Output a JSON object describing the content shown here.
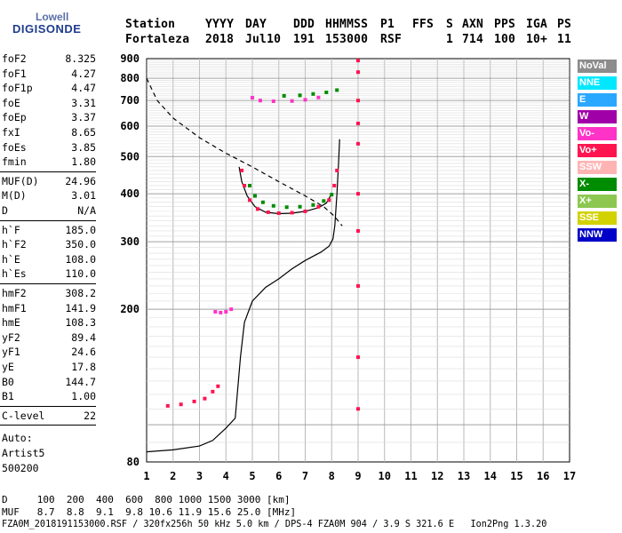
{
  "logo": {
    "line1": "Lowell",
    "line2": "DIGISONDE"
  },
  "header": {
    "labels": [
      "Station",
      "YYYY",
      "DAY",
      "DDD",
      "HHMMSS",
      "P1",
      "FFS",
      "S",
      "AXN",
      "PPS",
      "IGA",
      "PS"
    ],
    "values": [
      "Fortaleza",
      "2018",
      "Jul10",
      "191",
      "153000",
      "RSF",
      "",
      "1",
      "714",
      "100",
      "10+",
      "11"
    ]
  },
  "parameters": {
    "group1": [
      {
        "k": "foF2",
        "v": "8.325"
      },
      {
        "k": "foF1",
        "v": "4.27"
      },
      {
        "k": "foF1p",
        "v": "4.47"
      },
      {
        "k": "foE",
        "v": "3.31"
      },
      {
        "k": "foEp",
        "v": "3.37"
      },
      {
        "k": "fxI",
        "v": "8.65"
      },
      {
        "k": "foEs",
        "v": "3.85"
      },
      {
        "k": "fmin",
        "v": "1.80"
      }
    ],
    "group2": [
      {
        "k": "MUF(D)",
        "v": "24.96"
      },
      {
        "k": "M(D)",
        "v": "3.01"
      },
      {
        "k": "D",
        "v": "N/A"
      }
    ],
    "group3": [
      {
        "k": "h`F",
        "v": "185.0"
      },
      {
        "k": "h`F2",
        "v": "350.0"
      },
      {
        "k": "h`E",
        "v": "108.0"
      },
      {
        "k": "h`Es",
        "v": "110.0"
      }
    ],
    "group4": [
      {
        "k": "hmF2",
        "v": "308.2"
      },
      {
        "k": "hmF1",
        "v": "141.9"
      },
      {
        "k": "hmE",
        "v": "108.3"
      },
      {
        "k": "yF2",
        "v": "89.4"
      },
      {
        "k": "yF1",
        "v": "24.6"
      },
      {
        "k": "yE",
        "v": "17.8"
      },
      {
        "k": "B0",
        "v": "144.7"
      },
      {
        "k": "B1",
        "v": "1.00"
      }
    ],
    "group5": [
      {
        "k": "C-level",
        "v": "22"
      }
    ],
    "autoscaling": [
      "Auto:",
      "Artist5",
      "500200"
    ]
  },
  "legend": [
    {
      "label": "NoVal",
      "color": "#8c8c8c",
      "text": "#ffffff"
    },
    {
      "label": "NNE",
      "color": "#00e8ff",
      "text": "#ffffff"
    },
    {
      "label": "E",
      "color": "#2aa7ff",
      "text": "#ffffff"
    },
    {
      "label": "W",
      "color": "#a000a8",
      "text": "#ffffff"
    },
    {
      "label": "Vo-",
      "color": "#ff33c8",
      "text": "#ffffff"
    },
    {
      "label": "Vo+",
      "color": "#ff1450",
      "text": "#ffffff"
    },
    {
      "label": "SSW",
      "color": "#ffb4b4",
      "text": "#ffffff"
    },
    {
      "label": "X-",
      "color": "#008c00",
      "text": "#ffffff"
    },
    {
      "label": "X+",
      "color": "#8cc850",
      "text": "#ffffff"
    },
    {
      "label": "SSE",
      "color": "#d2d200",
      "text": "#ffffff"
    },
    {
      "label": "NNW",
      "color": "#0000c8",
      "text": "#ffffff"
    }
  ],
  "footer": {
    "line1": "D     100  200  400  600  800 1000 1500 3000 [km]",
    "line2": "MUF   8.7  8.8  9.1  9.8 10.6 11.9 15.6 25.0 [MHz]",
    "line3": "FZA0M_2018191153000.RSF / 320fx256h 50 kHz 5.0 km / DPS-4 FZA0M 904 / 3.9 S 321.6 E   Ion2Png 1.3.20"
  },
  "chart_data": {
    "type": "scatter",
    "title": "",
    "xlabel": "",
    "ylabel": "",
    "xlim": [
      1,
      17
    ],
    "ylim": [
      80,
      900
    ],
    "x_ticks": [
      1,
      2,
      3,
      4,
      5,
      6,
      7,
      8,
      9,
      10,
      11,
      12,
      13,
      14,
      15,
      16,
      17
    ],
    "y_ticks": [
      80,
      100,
      200,
      300,
      400,
      500,
      600,
      700,
      800,
      900
    ],
    "y_tick_labels": [
      "80",
      "",
      "200",
      "300",
      "400",
      "500",
      "600",
      "700",
      "800",
      "900"
    ],
    "y_scale": "log",
    "grid": true,
    "series": [
      {
        "kind": "line",
        "style": "dashed",
        "color": "#000000",
        "points": [
          [
            1.0,
            800
          ],
          [
            1.4,
            700
          ],
          [
            2.0,
            630
          ],
          [
            3.0,
            560
          ],
          [
            4.0,
            510
          ],
          [
            5.0,
            470
          ],
          [
            6.0,
            430
          ],
          [
            7.0,
            395
          ],
          [
            7.7,
            370
          ],
          [
            8.1,
            350
          ],
          [
            8.4,
            330
          ]
        ]
      },
      {
        "kind": "line",
        "style": "solid",
        "color": "#000000",
        "points": [
          [
            1.0,
            85
          ],
          [
            2.0,
            86
          ],
          [
            3.0,
            88
          ],
          [
            3.5,
            91
          ],
          [
            4.0,
            98
          ],
          [
            4.35,
            104
          ],
          [
            4.55,
            150
          ],
          [
            4.7,
            185
          ],
          [
            5.0,
            210
          ],
          [
            5.5,
            228
          ],
          [
            6.0,
            240
          ],
          [
            6.5,
            255
          ],
          [
            7.0,
            268
          ],
          [
            7.6,
            282
          ],
          [
            7.9,
            292
          ],
          [
            8.05,
            305
          ],
          [
            8.12,
            330
          ],
          [
            8.2,
            400
          ],
          [
            8.26,
            480
          ],
          [
            8.3,
            555
          ]
        ]
      },
      {
        "kind": "line",
        "style": "solid",
        "color": "#000000",
        "points": [
          [
            4.5,
            470
          ],
          [
            4.6,
            430
          ],
          [
            4.8,
            395
          ],
          [
            5.1,
            370
          ],
          [
            5.5,
            358
          ],
          [
            6.0,
            355
          ],
          [
            6.5,
            356
          ],
          [
            7.0,
            360
          ],
          [
            7.5,
            368
          ],
          [
            7.8,
            378
          ],
          [
            8.0,
            400
          ]
        ]
      },
      {
        "kind": "trace",
        "name": "O-F2",
        "color": "#ff1450",
        "points": [
          [
            4.6,
            460
          ],
          [
            4.7,
            420
          ],
          [
            4.9,
            385
          ],
          [
            5.2,
            365
          ],
          [
            5.6,
            358
          ],
          [
            6.0,
            356
          ],
          [
            6.5,
            357
          ],
          [
            7.0,
            360
          ],
          [
            7.5,
            370
          ],
          [
            7.9,
            385
          ],
          [
            8.1,
            420
          ],
          [
            8.2,
            460
          ]
        ]
      },
      {
        "kind": "trace",
        "name": "X-F2",
        "color": "#008c00",
        "points": [
          [
            4.9,
            420
          ],
          [
            5.1,
            395
          ],
          [
            5.4,
            380
          ],
          [
            5.8,
            372
          ],
          [
            6.3,
            369
          ],
          [
            6.8,
            370
          ],
          [
            7.3,
            374
          ],
          [
            7.7,
            383
          ],
          [
            8.0,
            398
          ]
        ]
      },
      {
        "kind": "trace",
        "name": "O-2F2",
        "color": "#ff33c8",
        "points": [
          [
            5.0,
            712
          ],
          [
            5.3,
            700
          ],
          [
            5.8,
            697
          ],
          [
            6.5,
            698
          ],
          [
            7.0,
            703
          ],
          [
            7.5,
            713
          ]
        ]
      },
      {
        "kind": "trace",
        "name": "X-2F2",
        "color": "#008c00",
        "points": [
          [
            6.2,
            720
          ],
          [
            6.8,
            722
          ],
          [
            7.3,
            728
          ],
          [
            7.8,
            735
          ],
          [
            8.2,
            745
          ]
        ]
      },
      {
        "kind": "trace",
        "name": "Es",
        "color": "#ff1450",
        "points": [
          [
            1.8,
            112
          ],
          [
            2.3,
            113
          ],
          [
            2.8,
            115
          ],
          [
            3.2,
            117
          ],
          [
            3.5,
            122
          ],
          [
            3.7,
            126
          ]
        ]
      },
      {
        "kind": "trace",
        "name": "Es-2",
        "color": "#ff33c8",
        "points": [
          [
            3.6,
            197
          ],
          [
            3.8,
            196
          ],
          [
            4.0,
            197
          ],
          [
            4.2,
            200
          ]
        ]
      },
      {
        "kind": "trace",
        "name": "vertical-9",
        "color": "#ff1450",
        "points": [
          [
            9.0,
            110
          ],
          [
            9.0,
            150
          ],
          [
            9.0,
            230
          ],
          [
            9.0,
            320
          ],
          [
            9.0,
            400
          ],
          [
            9.0,
            540
          ],
          [
            9.0,
            610
          ],
          [
            9.0,
            700
          ],
          [
            9.0,
            830
          ],
          [
            9.0,
            890
          ]
        ]
      }
    ]
  }
}
